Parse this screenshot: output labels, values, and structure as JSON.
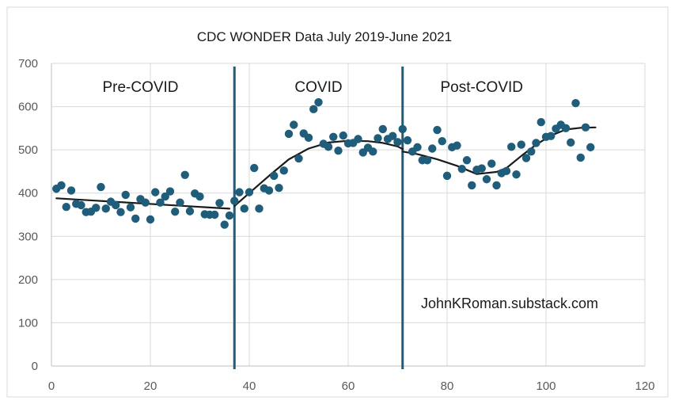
{
  "chart_data": {
    "type": "scatter",
    "title": "CDC WONDER Data July 2019-June 2021",
    "xlabel": "",
    "ylabel": "",
    "xlim": [
      0,
      120
    ],
    "ylim": [
      0,
      700
    ],
    "x_ticks": [
      0,
      20,
      40,
      60,
      80,
      100,
      120
    ],
    "y_ticks": [
      0,
      100,
      200,
      300,
      400,
      500,
      600,
      700
    ],
    "x_tick_labels": [
      "0",
      "20",
      "40",
      "60",
      "80",
      "100",
      "120"
    ],
    "y_tick_labels": [
      "0",
      "100",
      "200",
      "300",
      "400",
      "500",
      "600",
      "700"
    ],
    "grid": "vertical and horizontal major gridlines",
    "legend": "none",
    "colors": {
      "points": "#1f5d7a",
      "trend": "#1a1a1a",
      "dividers": "#1f5d7a",
      "grid": "#d9d9d9"
    },
    "regions": [
      {
        "label": "Pre-COVID",
        "x": 18
      },
      {
        "label": "COVID",
        "x": 54
      },
      {
        "label": "Post-COVID",
        "x": 87
      }
    ],
    "dividers": [
      37,
      71
    ],
    "annotation": "JohnKRoman.substack.com",
    "series": [
      {
        "values": [
          [
            1,
            410
          ],
          [
            2,
            418
          ],
          [
            3,
            368
          ],
          [
            4,
            406
          ],
          [
            5,
            375
          ],
          [
            6,
            372
          ],
          [
            7,
            356
          ],
          [
            8,
            357
          ],
          [
            9,
            366
          ],
          [
            10,
            414
          ],
          [
            11,
            364
          ],
          [
            12,
            380
          ],
          [
            13,
            372
          ],
          [
            14,
            356
          ],
          [
            15,
            396
          ],
          [
            16,
            367
          ],
          [
            17,
            341
          ],
          [
            18,
            386
          ],
          [
            19,
            378
          ],
          [
            20,
            339
          ],
          [
            21,
            402
          ],
          [
            22,
            378
          ],
          [
            23,
            392
          ],
          [
            24,
            404
          ],
          [
            25,
            357
          ],
          [
            26,
            378
          ],
          [
            27,
            442
          ],
          [
            28,
            358
          ],
          [
            29,
            399
          ],
          [
            30,
            392
          ],
          [
            31,
            351
          ],
          [
            32,
            350
          ],
          [
            33,
            350
          ],
          [
            34,
            377
          ],
          [
            35,
            327
          ],
          [
            36,
            348
          ],
          [
            37,
            382
          ],
          [
            38,
            402
          ],
          [
            39,
            364
          ],
          [
            40,
            402
          ],
          [
            41,
            458
          ],
          [
            42,
            364
          ],
          [
            43,
            411
          ],
          [
            44,
            406
          ],
          [
            45,
            440
          ],
          [
            46,
            412
          ],
          [
            47,
            452
          ],
          [
            48,
            537
          ],
          [
            49,
            558
          ],
          [
            50,
            480
          ],
          [
            51,
            538
          ],
          [
            52,
            528
          ],
          [
            53,
            594
          ],
          [
            54,
            610
          ],
          [
            55,
            514
          ],
          [
            56,
            507
          ],
          [
            57,
            530
          ],
          [
            58,
            498
          ],
          [
            59,
            533
          ],
          [
            60,
            515
          ],
          [
            61,
            516
          ],
          [
            62,
            525
          ],
          [
            63,
            494
          ],
          [
            64,
            505
          ],
          [
            65,
            496
          ],
          [
            66,
            527
          ],
          [
            67,
            548
          ],
          [
            68,
            525
          ],
          [
            69,
            532
          ],
          [
            70,
            518
          ],
          [
            71,
            548
          ],
          [
            72,
            522
          ],
          [
            73,
            496
          ],
          [
            74,
            506
          ],
          [
            75,
            476
          ],
          [
            76,
            476
          ],
          [
            77,
            503
          ],
          [
            78,
            546
          ],
          [
            79,
            520
          ],
          [
            80,
            440
          ],
          [
            81,
            506
          ],
          [
            82,
            510
          ],
          [
            83,
            456
          ],
          [
            84,
            476
          ],
          [
            85,
            418
          ],
          [
            86,
            454
          ],
          [
            87,
            457
          ],
          [
            88,
            432
          ],
          [
            89,
            468
          ],
          [
            90,
            418
          ],
          [
            91,
            446
          ],
          [
            92,
            451
          ],
          [
            93,
            507
          ],
          [
            94,
            443
          ],
          [
            95,
            512
          ],
          [
            96,
            481
          ],
          [
            97,
            496
          ],
          [
            98,
            516
          ],
          [
            99,
            564
          ],
          [
            100,
            530
          ],
          [
            101,
            532
          ],
          [
            102,
            549
          ],
          [
            103,
            558
          ],
          [
            104,
            550
          ],
          [
            105,
            517
          ],
          [
            106,
            608
          ],
          [
            107,
            482
          ],
          [
            108,
            552
          ],
          [
            109,
            506
          ]
        ]
      }
    ],
    "trendlines": [
      {
        "x": [
          1,
          36
        ],
        "y": [
          388,
          364
        ]
      },
      {
        "x": [
          37,
          40,
          44,
          48,
          52,
          56,
          60,
          64,
          67,
          70,
          71
        ],
        "y": [
          370,
          400,
          440,
          478,
          503,
          517,
          521,
          520,
          516,
          508,
          502
        ]
      },
      {
        "x": [
          71,
          74,
          78,
          82,
          86,
          90,
          92,
          95,
          98,
          101,
          104,
          107,
          110
        ],
        "y": [
          496,
          490,
          478,
          463,
          444,
          449,
          458,
          486,
          512,
          533,
          547,
          551,
          552
        ]
      }
    ]
  }
}
